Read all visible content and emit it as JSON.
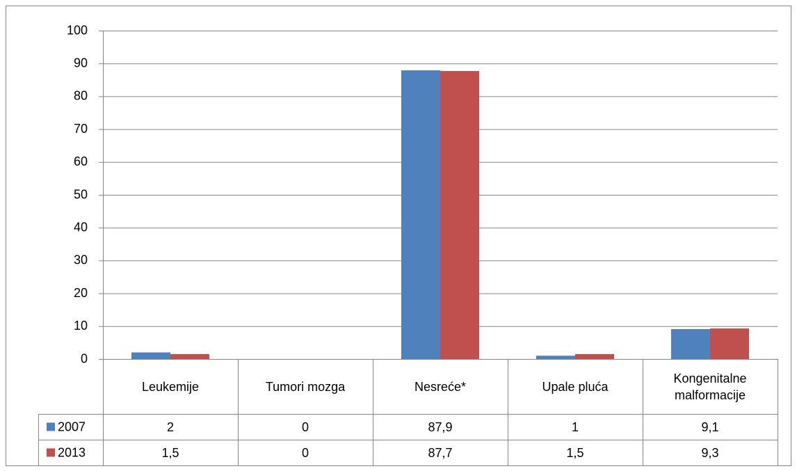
{
  "chart_data": {
    "type": "bar",
    "categories": [
      "Leukemije",
      "Tumori mozga",
      "Nesreće*",
      "Upale pluća",
      "Kongenitalne malformacije"
    ],
    "series": [
      {
        "name": "2007",
        "color": "#4f81bd",
        "values": [
          2,
          0,
          87.9,
          1,
          9.1
        ],
        "value_labels": [
          "2",
          "0",
          "87,9",
          "1",
          "9,1"
        ]
      },
      {
        "name": "2013",
        "color": "#c0504d",
        "values": [
          1.5,
          0,
          87.7,
          1.5,
          9.3
        ],
        "value_labels": [
          "1,5",
          "0",
          "87,7",
          "1,5",
          "9,3"
        ]
      }
    ],
    "ylim": [
      0,
      100
    ],
    "yticks": [
      0,
      10,
      20,
      30,
      40,
      50,
      60,
      70,
      80,
      90,
      100
    ],
    "grid": true
  }
}
